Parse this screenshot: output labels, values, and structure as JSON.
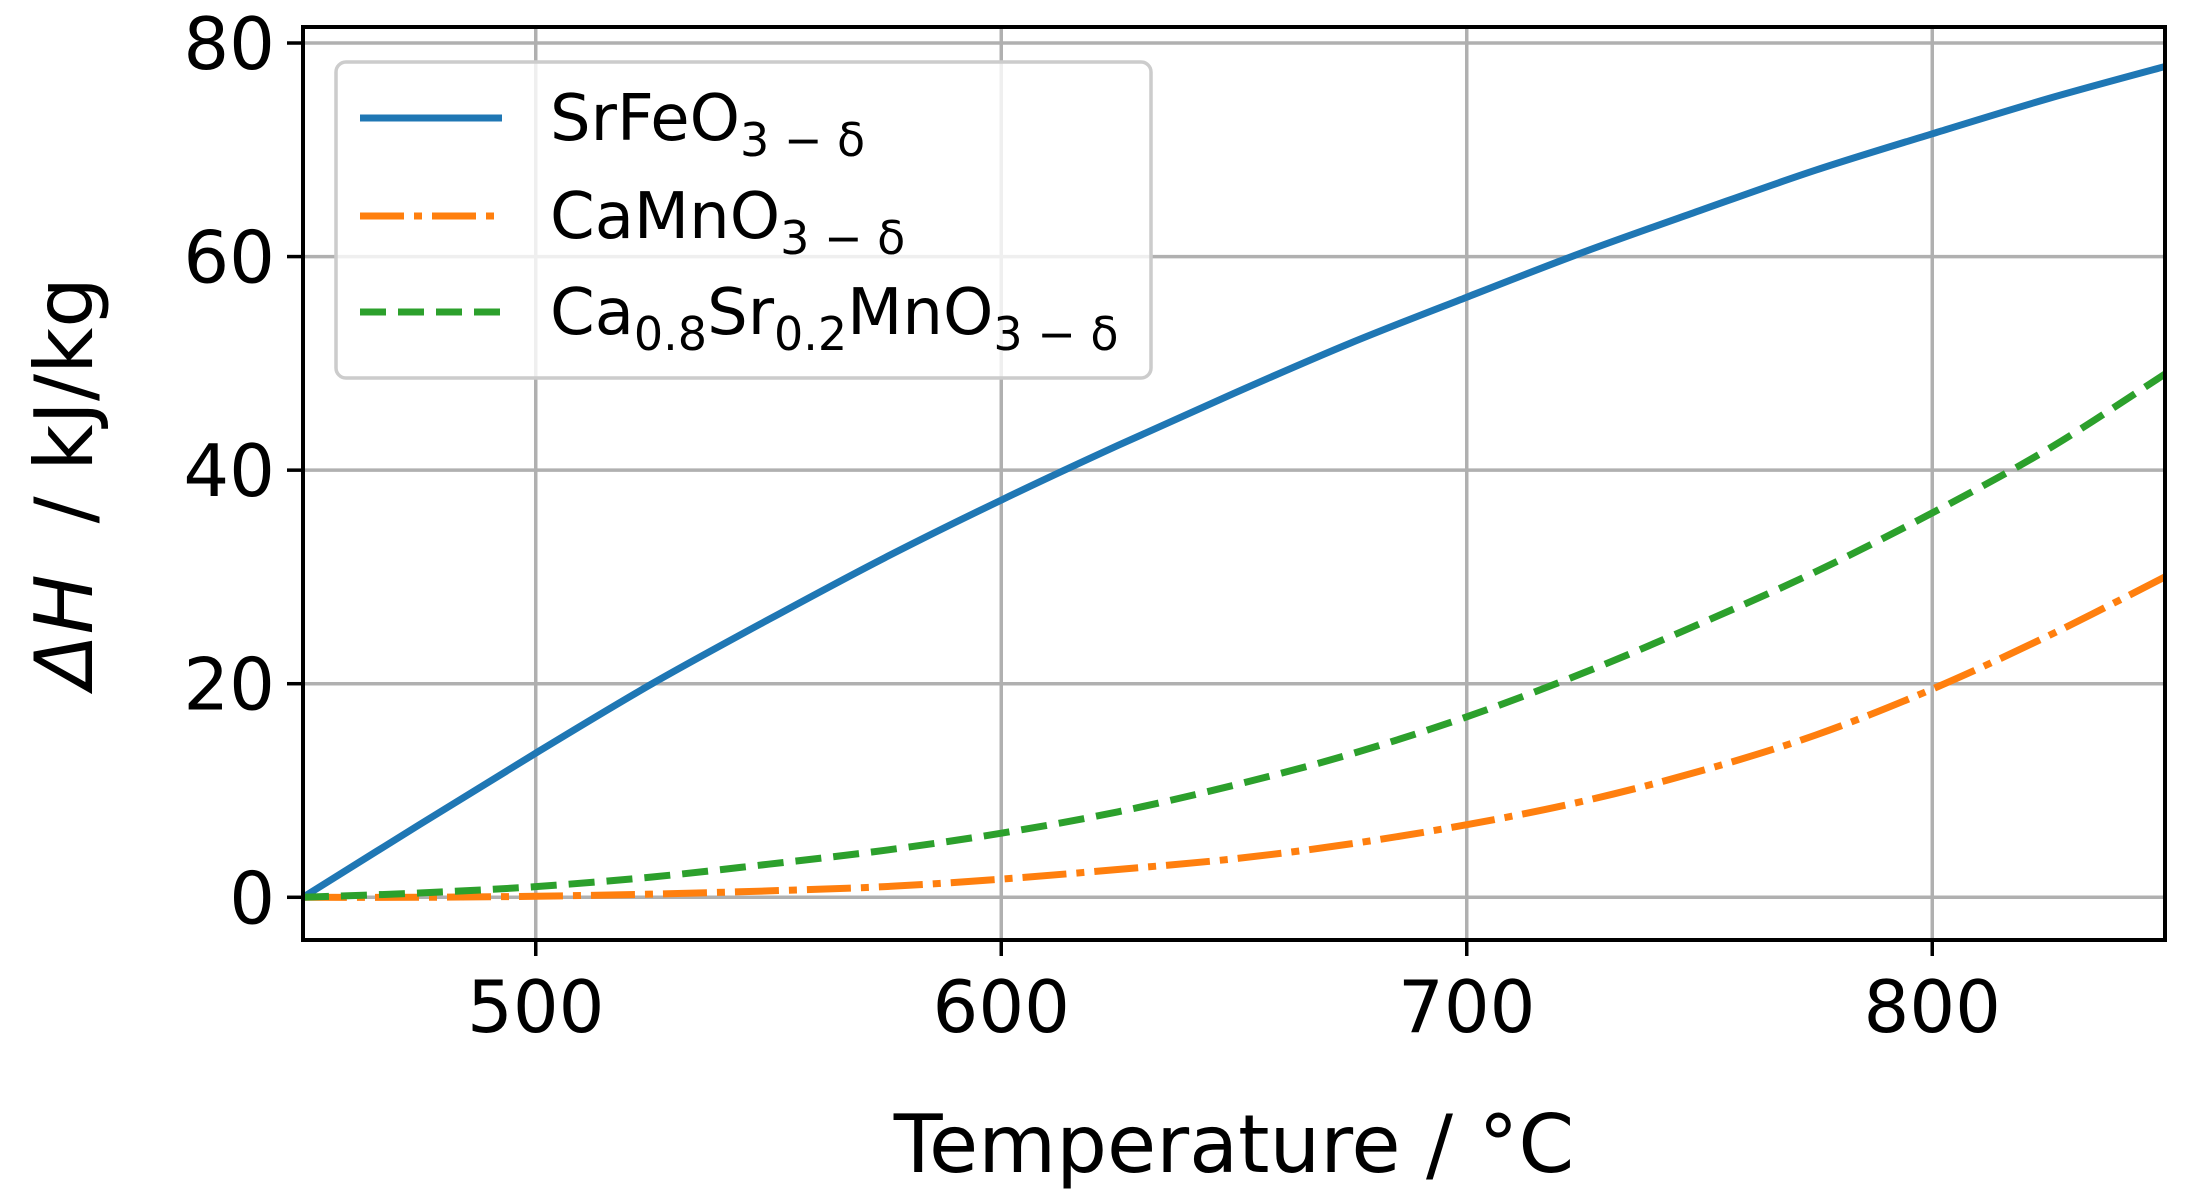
{
  "chart_data": {
    "type": "line",
    "title": "",
    "xlabel": "Temperature / °C",
    "ylabel_symbol": "ΔH",
    "ylabel_unit": "  / kJ/kg",
    "xlim": [
      450,
      850
    ],
    "ylim": [
      -4,
      81.5
    ],
    "xticks": [
      500,
      600,
      700,
      800
    ],
    "yticks": [
      0,
      20,
      40,
      60,
      80
    ],
    "grid": true,
    "legend_position": "top-left",
    "series": [
      {
        "name": "SrFeO",
        "legend_main": "SrFeO",
        "legend_sub": "3 − δ",
        "color": "#1f77b4",
        "style": "solid",
        "x": [
          450,
          475,
          500,
          525,
          550,
          575,
          600,
          625,
          650,
          675,
          700,
          725,
          750,
          775,
          800,
          825,
          850
        ],
        "y": [
          0,
          6.8,
          13.5,
          20,
          26,
          31.8,
          37.2,
          42.3,
          47.2,
          51.9,
          56.2,
          60.4,
          64.3,
          68.1,
          71.5,
          74.8,
          77.8
        ]
      },
      {
        "name": "CaMnO",
        "legend_main": "CaMnO",
        "legend_sub": "3 − δ",
        "color": "#ff7f0e",
        "style": "dashdot",
        "x": [
          450,
          475,
          500,
          525,
          550,
          575,
          600,
          625,
          650,
          675,
          700,
          725,
          750,
          775,
          800,
          825,
          850
        ],
        "y": [
          0,
          0,
          0.1,
          0.3,
          0.6,
          1.0,
          1.7,
          2.6,
          3.6,
          5.0,
          6.8,
          9.0,
          11.8,
          15.2,
          19.5,
          24.5,
          30.0
        ]
      },
      {
        "name": "Ca0.8Sr0.2MnO",
        "legend_parts": [
          "Ca",
          "0.8",
          "Sr",
          "0.2",
          "MnO",
          "3 − δ"
        ],
        "color": "#2ca02c",
        "style": "dashed",
        "x": [
          450,
          475,
          500,
          525,
          550,
          575,
          600,
          625,
          650,
          675,
          700,
          725,
          750,
          775,
          800,
          825,
          850
        ],
        "y": [
          0,
          0.4,
          1.0,
          1.9,
          3.1,
          4.4,
          6.0,
          8.0,
          10.5,
          13.4,
          16.9,
          21.0,
          25.6,
          30.5,
          36.0,
          42.0,
          49.0
        ]
      }
    ]
  }
}
